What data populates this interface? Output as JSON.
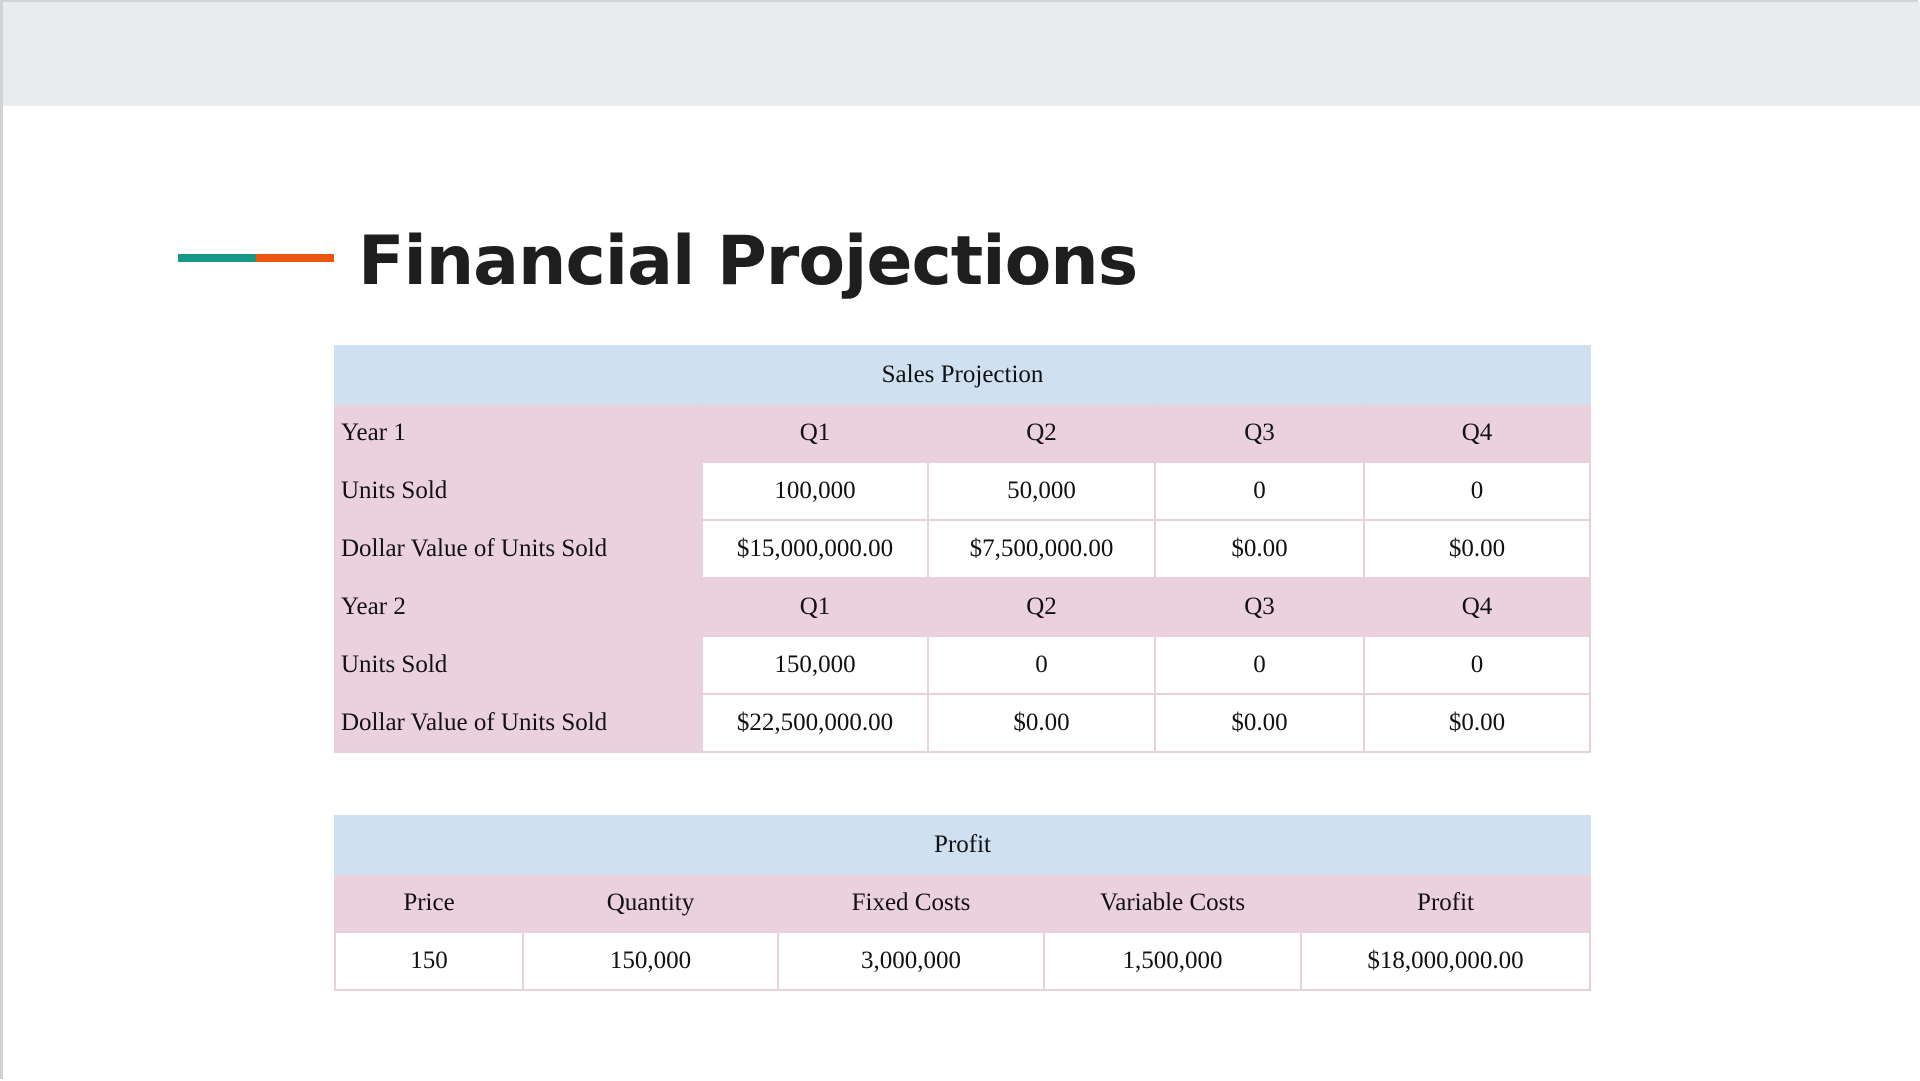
{
  "title": "Financial Projections",
  "colors": {
    "accent_teal": "#17998a",
    "accent_orange": "#e8560f",
    "table_header": "#cfe1f1",
    "table_pink": "#ebd1de"
  },
  "sales": {
    "header": "Sales Projection",
    "year1": {
      "label": "Year 1",
      "quarters": [
        "Q1",
        "Q2",
        "Q3",
        "Q4"
      ],
      "units_label": "Units Sold",
      "units": [
        "100,000",
        "50,000",
        "0",
        "0"
      ],
      "dollar_label": "Dollar Value of Units Sold",
      "dollars": [
        "$15,000,000.00",
        "$7,500,000.00",
        "$0.00",
        "$0.00"
      ]
    },
    "year2": {
      "label": "Year 2",
      "quarters": [
        "Q1",
        "Q2",
        "Q3",
        "Q4"
      ],
      "units_label": "Units Sold",
      "units": [
        "150,000",
        "0",
        "0",
        "0"
      ],
      "dollar_label": "Dollar Value of Units Sold",
      "dollars": [
        "$22,500,000.00",
        "$0.00",
        "$0.00",
        "$0.00"
      ]
    }
  },
  "profit": {
    "header": "Profit",
    "columns": [
      "Price",
      "Quantity",
      "Fixed Costs",
      "Variable Costs",
      "Profit"
    ],
    "values": [
      "150",
      "150,000",
      "3,000,000",
      "1,500,000",
      "$18,000,000.00"
    ]
  }
}
